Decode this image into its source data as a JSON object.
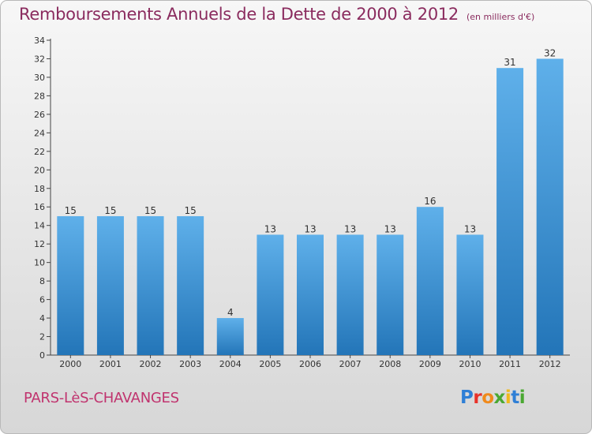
{
  "title": "Remboursements Annuels de la Dette de 2000 à 2012",
  "subtitle": "(en milliers d'€)",
  "commune": "PARS-LèS-CHAVANGES",
  "logo": {
    "letters": [
      "P",
      "r",
      "o",
      "x",
      "i",
      "t",
      "i"
    ],
    "colors": [
      "#2f7fd6",
      "#e8322a",
      "#f08a1c",
      "#4aa832",
      "#f0b81c",
      "#2f7fd6",
      "#4aa832"
    ]
  },
  "colors": {
    "bar_top": "#5fb0ea",
    "bar_bottom": "#2375b8",
    "title": "#8a2b5e",
    "commune": "#c0336e"
  },
  "chart_data": {
    "type": "bar",
    "categories": [
      "2000",
      "2001",
      "2002",
      "2003",
      "2004",
      "2005",
      "2006",
      "2007",
      "2008",
      "2009",
      "2010",
      "2011",
      "2012"
    ],
    "values": [
      15,
      15,
      15,
      15,
      4,
      13,
      13,
      13,
      13,
      16,
      13,
      31,
      32
    ],
    "data_labels": [
      "15",
      "15",
      "15",
      "15",
      "4",
      "13",
      "13",
      "13",
      "13",
      "16",
      "13",
      "31",
      "32"
    ],
    "ylim": [
      0,
      34
    ],
    "yticks": [
      "0",
      "2",
      "4",
      "6",
      "8",
      "10",
      "12",
      "14",
      "16",
      "18",
      "20",
      "22",
      "24",
      "26",
      "28",
      "30",
      "32",
      "34"
    ],
    "grid": false,
    "legend": "none"
  }
}
